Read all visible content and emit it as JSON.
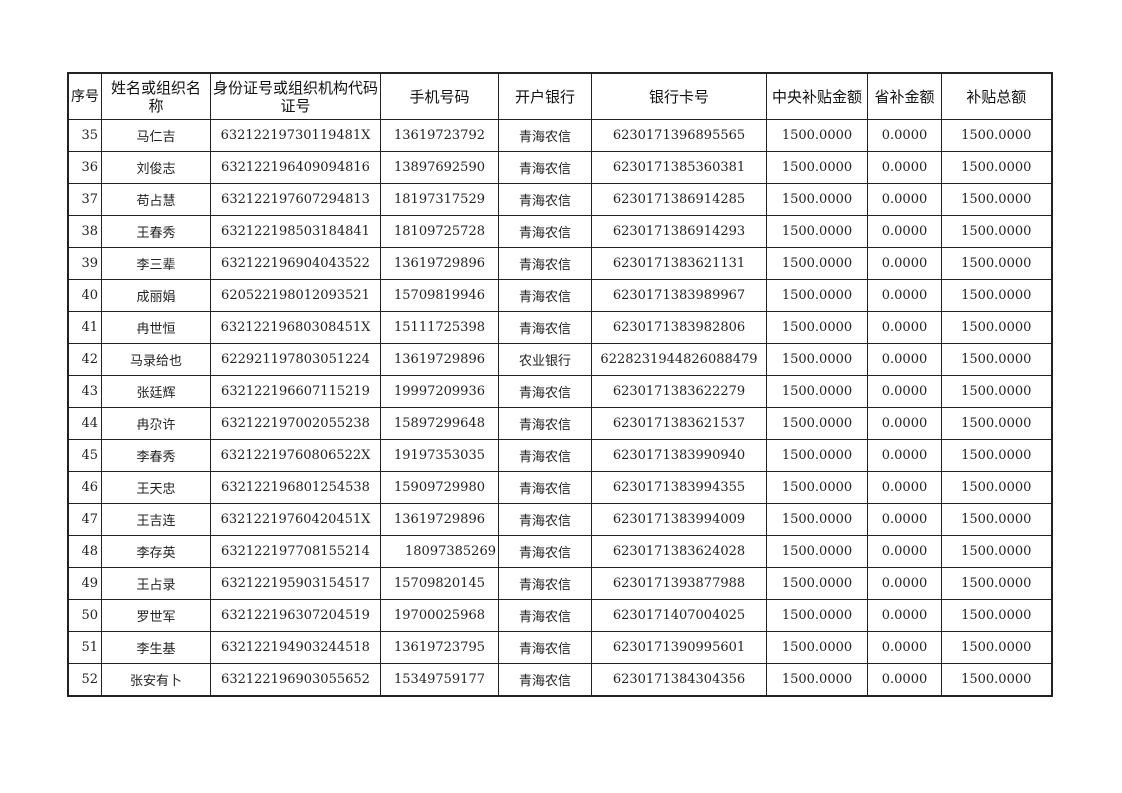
{
  "headers": [
    "序号",
    "姓名或组织名称",
    "身份证号或组织机构代码证号",
    "手机号码",
    "开户银行",
    "银行卡号",
    "中央补贴金额",
    "省补金额",
    "补贴总额"
  ],
  "rows": [
    [
      "35",
      "马仁吉",
      "63212219730119481X",
      "13619723792",
      "青海农信",
      "6230171396895565",
      "1500.0000",
      "0.0000",
      "1500.0000"
    ],
    [
      "36",
      "刘俊志",
      "632122196409094816",
      "13897692590",
      "青海农信",
      "6230171385360381",
      "1500.0000",
      "0.0000",
      "1500.0000"
    ],
    [
      "37",
      "苟占慧",
      "632122197607294813",
      "18197317529",
      "青海农信",
      "6230171386914285",
      "1500.0000",
      "0.0000",
      "1500.0000"
    ],
    [
      "38",
      "王春秀",
      "632122198503184841",
      "18109725728",
      "青海农信",
      "6230171386914293",
      "1500.0000",
      "0.0000",
      "1500.0000"
    ],
    [
      "39",
      "李三辈",
      "632122196904043522",
      "13619729896",
      "青海农信",
      "6230171383621131",
      "1500.0000",
      "0.0000",
      "1500.0000"
    ],
    [
      "40",
      "成丽娟",
      "620522198012093521",
      "15709819946",
      "青海农信",
      "6230171383989967",
      "1500.0000",
      "0.0000",
      "1500.0000"
    ],
    [
      "41",
      "冉世恒",
      "63212219680308451X",
      "15111725398",
      "青海农信",
      "6230171383982806",
      "1500.0000",
      "0.0000",
      "1500.0000"
    ],
    [
      "42",
      "马录给也",
      "622921197803051224",
      "13619729896",
      "农业银行",
      "6228231944826088479",
      "1500.0000",
      "0.0000",
      "1500.0000"
    ],
    [
      "43",
      "张廷辉",
      "632122196607115219",
      "19997209936",
      "青海农信",
      "6230171383622279",
      "1500.0000",
      "0.0000",
      "1500.0000"
    ],
    [
      "44",
      "冉尕许",
      "632122197002055238",
      "15897299648",
      "青海农信",
      "6230171383621537",
      "1500.0000",
      "0.0000",
      "1500.0000"
    ],
    [
      "45",
      "李春秀",
      "63212219760806522X",
      "19197353035",
      "青海农信",
      "6230171383990940",
      "1500.0000",
      "0.0000",
      "1500.0000"
    ],
    [
      "46",
      "王天忠",
      "632122196801254538",
      "15909729980",
      "青海农信",
      "6230171383994355",
      "1500.0000",
      "0.0000",
      "1500.0000"
    ],
    [
      "47",
      "王吉连",
      "63212219760420451X",
      "13619729896",
      "青海农信",
      "6230171383994009",
      "1500.0000",
      "0.0000",
      "1500.0000"
    ],
    [
      "48",
      "李存英",
      "632122197708155214",
      "18097385269",
      "青海农信",
      "6230171383624028",
      "1500.0000",
      "0.0000",
      "1500.0000"
    ],
    [
      "49",
      "王占录",
      "632122195903154517",
      "15709820145",
      "青海农信",
      "6230171393877988",
      "1500.0000",
      "0.0000",
      "1500.0000"
    ],
    [
      "50",
      "罗世军",
      "632122196307204519",
      "19700025968",
      "青海农信",
      "6230171407004025",
      "1500.0000",
      "0.0000",
      "1500.0000"
    ],
    [
      "51",
      "李生基",
      "632122194903244518",
      "13619723795",
      "青海农信",
      "6230171390995601",
      "1500.0000",
      "0.0000",
      "1500.0000"
    ],
    [
      "52",
      "张安有卜",
      "632122196903055652",
      "15349759177",
      "青海农信",
      "6230171384304356",
      "1500.0000",
      "0.0000",
      "1500.0000"
    ]
  ]
}
